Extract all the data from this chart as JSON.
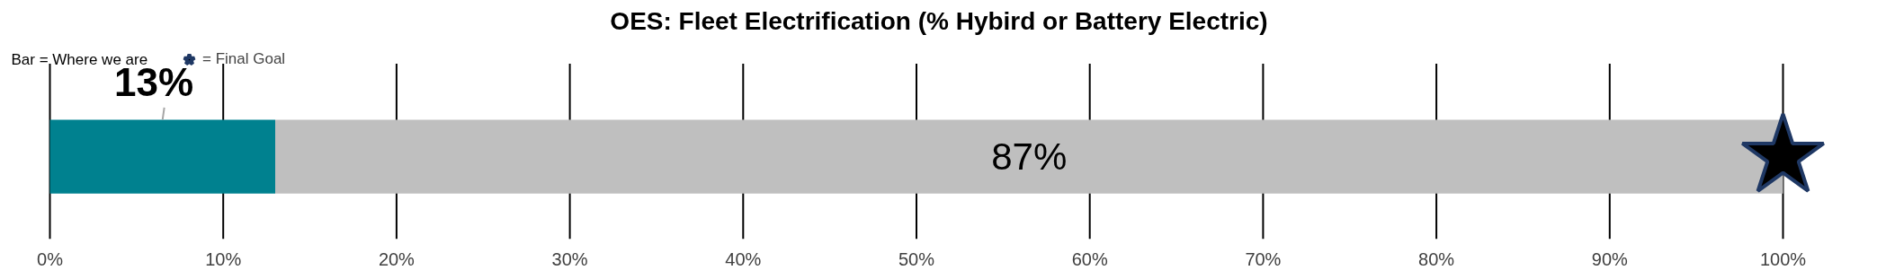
{
  "chart_data": {
    "type": "bar",
    "orientation": "horizontal",
    "stacked": true,
    "title": "OES: Fleet Electrification (% Hybird or Battery Electric)",
    "categories": [
      null
    ],
    "series": [
      {
        "color": "#00818f",
        "values": [
          13
        ],
        "value_labels": [
          "13%"
        ]
      },
      {
        "color": "#bfbfbf",
        "values": [
          87
        ],
        "value_labels": [
          "87%"
        ]
      },
      {
        "type": "scatter",
        "marker": "star",
        "name": "= Final Goal",
        "color": "#000000",
        "values": [
          100
        ]
      }
    ],
    "xlim": [
      0,
      100
    ],
    "xticks": [
      {
        "value": 0,
        "label": "0%"
      },
      {
        "value": 10,
        "label": "10%"
      },
      {
        "value": 20,
        "label": "20%"
      },
      {
        "value": 30,
        "label": "30%"
      },
      {
        "value": 40,
        "label": "40%"
      },
      {
        "value": 50,
        "label": "50%"
      },
      {
        "value": 60,
        "label": "60%"
      },
      {
        "value": 70,
        "label": "70%"
      },
      {
        "value": 80,
        "label": "80%"
      },
      {
        "value": 90,
        "label": "90%"
      },
      {
        "value": 100,
        "label": "100%"
      }
    ],
    "grid": "x",
    "legend": "top left",
    "annotations": [
      "Bar = Where we are"
    ]
  }
}
